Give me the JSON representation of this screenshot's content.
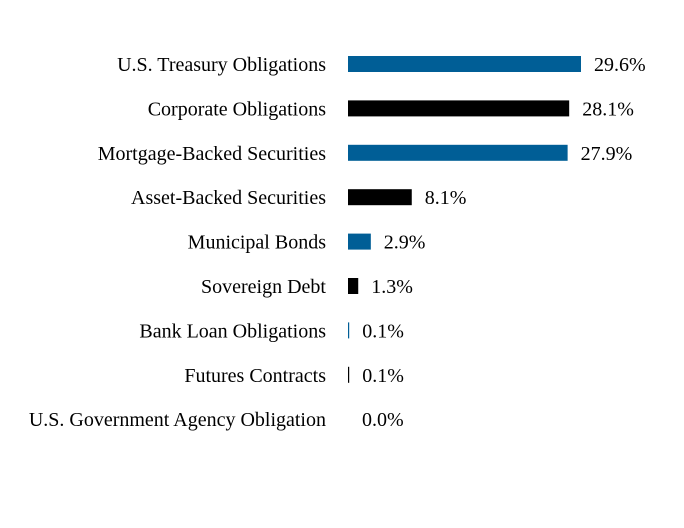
{
  "chart_data": {
    "type": "bar",
    "orientation": "horizontal",
    "categories": [
      "U.S. Treasury Obligations",
      "Corporate Obligations",
      "Mortgage-Backed Securities",
      "Asset-Backed Securities",
      "Municipal Bonds",
      "Sovereign Debt",
      "Bank Loan Obligations",
      "Futures Contracts",
      "U.S. Government Agency Obligation"
    ],
    "values": [
      29.6,
      28.1,
      27.9,
      8.1,
      2.9,
      1.3,
      0.1,
      0.1,
      0.0
    ],
    "value_labels": [
      "29.6%",
      "28.1%",
      "27.9%",
      "8.1%",
      "2.9%",
      "1.3%",
      "0.1%",
      "0.1%",
      "0.0%"
    ],
    "colors": [
      "#005e96",
      "#000000",
      "#005e96",
      "#000000",
      "#005e96",
      "#000000",
      "#005e96",
      "#000000",
      "#005e96"
    ],
    "xlim": [
      0,
      29.6
    ],
    "grid": false,
    "legend": false
  }
}
